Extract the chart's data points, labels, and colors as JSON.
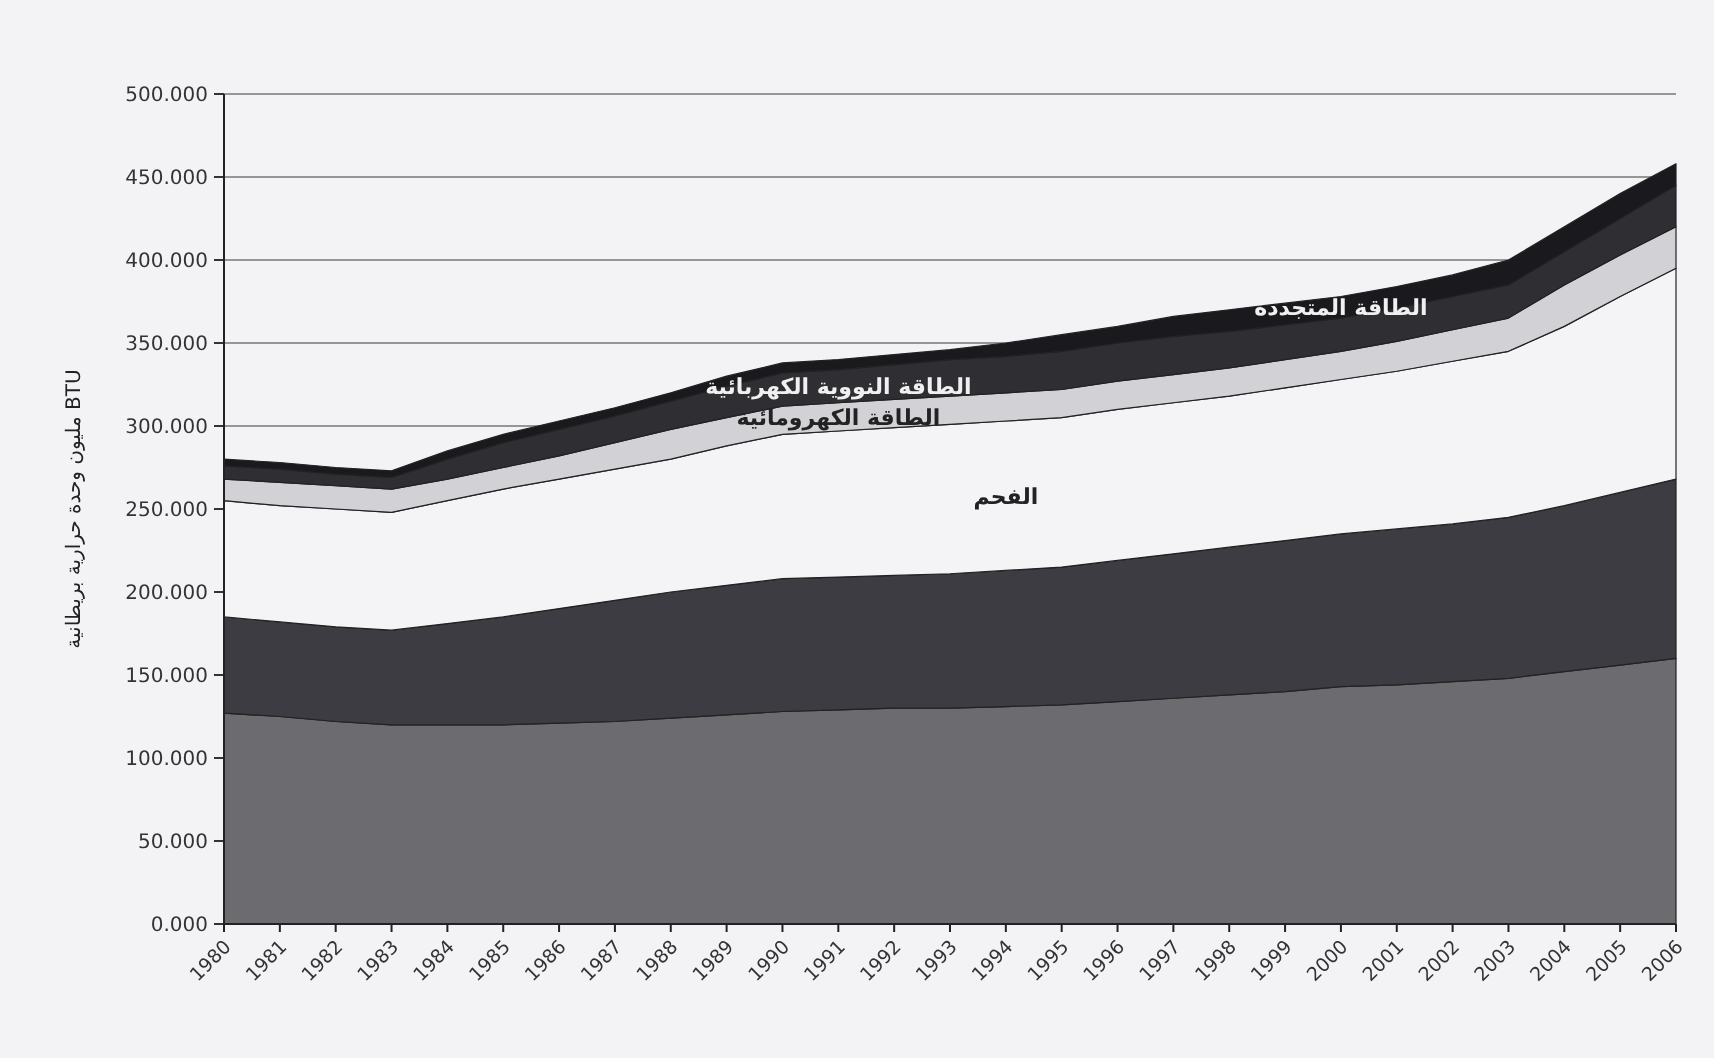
{
  "chart_data": {
    "type": "area",
    "stacked": true,
    "ylabel": "BTU مليون وحدة حرارية بريطانية",
    "grid": "y",
    "categories": [
      "1980",
      "1981",
      "1982",
      "1983",
      "1984",
      "1985",
      "1986",
      "1987",
      "1988",
      "1989",
      "1990",
      "1991",
      "1992",
      "1993",
      "1994",
      "1995",
      "1996",
      "1997",
      "1998",
      "1999",
      "2000",
      "2001",
      "2002",
      "2003",
      "2004",
      "2005",
      "2006"
    ],
    "ylim": [
      0,
      500
    ],
    "yticks": [
      {
        "value": 0,
        "label": "0.000"
      },
      {
        "value": 50,
        "label": "50.000"
      },
      {
        "value": 100,
        "label": "100.000"
      },
      {
        "value": 150,
        "label": "150.000"
      },
      {
        "value": 200,
        "label": "200.000"
      },
      {
        "value": 250,
        "label": "250.000"
      },
      {
        "value": 300,
        "label": "300.000"
      },
      {
        "value": 350,
        "label": "350.000"
      },
      {
        "value": 400,
        "label": "400.000"
      },
      {
        "value": 450,
        "label": "450.000"
      },
      {
        "value": 500,
        "label": "500.000"
      }
    ],
    "series": [
      {
        "color": "#6b6b70",
        "values": [
          127,
          125,
          122,
          120,
          120,
          120,
          121,
          122,
          124,
          126,
          128,
          129,
          130,
          130,
          131,
          132,
          134,
          136,
          138,
          140,
          143,
          144,
          146,
          148,
          152,
          156,
          160
        ]
      },
      {
        "color": "#3c3c42",
        "values": [
          58,
          57,
          57,
          57,
          61,
          65,
          69,
          73,
          76,
          78,
          80,
          80,
          80,
          81,
          82,
          83,
          85,
          87,
          89,
          91,
          92,
          94,
          95,
          97,
          100,
          104,
          108
        ]
      },
      {
        "name": "الفحم",
        "color": "#f4f4f6",
        "values": [
          70,
          70,
          71,
          71,
          74,
          77,
          78,
          79,
          80,
          84,
          87,
          88,
          89,
          90,
          90,
          90,
          91,
          91,
          91,
          92,
          93,
          95,
          98,
          100,
          108,
          118,
          127
        ]
      },
      {
        "name": "الطاقة الكهرومائية",
        "color": "#d2d2d6",
        "values": [
          13,
          14,
          14,
          14,
          13,
          13,
          14,
          16,
          18,
          17,
          17,
          17,
          17,
          17,
          17,
          17,
          17,
          17,
          17,
          17,
          17,
          18,
          19,
          20,
          25,
          25,
          25
        ]
      },
      {
        "name": "الطاقة النووية الكهربائية",
        "color": "#2e2e33",
        "values": [
          8,
          8,
          7,
          7,
          12,
          15,
          16,
          16,
          17,
          19,
          20,
          20,
          21,
          22,
          22,
          23,
          23,
          23,
          22,
          21,
          20,
          20,
          20,
          20,
          20,
          22,
          25
        ]
      },
      {
        "name": "الطاقة المتجددة",
        "color": "#1a1a1e",
        "values": [
          4,
          4,
          4,
          4,
          5,
          5,
          5,
          5,
          5,
          6,
          6,
          6,
          6,
          6,
          8,
          10,
          10,
          12,
          13,
          13,
          13,
          13,
          13,
          15,
          15,
          15,
          13
        ]
      }
    ]
  }
}
